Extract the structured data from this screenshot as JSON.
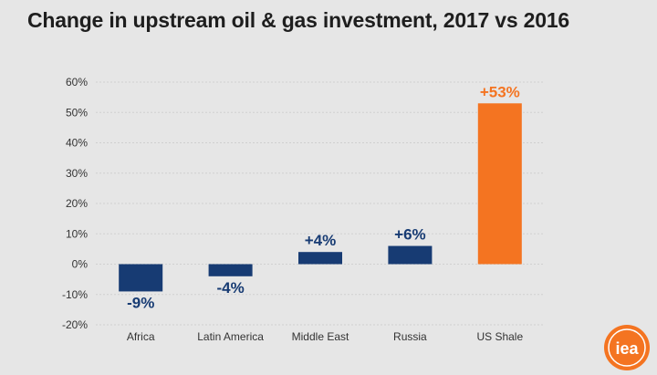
{
  "chart_data": {
    "type": "bar",
    "title": "Change in upstream oil & gas investment, 2017 vs 2016",
    "categories": [
      "Africa",
      "Latin America",
      "Middle East",
      "Russia",
      "US Shale"
    ],
    "values": [
      -9,
      -4,
      4,
      6,
      53
    ],
    "value_labels": [
      "-9%",
      "-4%",
      "+4%",
      "+6%",
      "+53%"
    ],
    "ylim": [
      -20,
      60
    ],
    "yticks": [
      -20,
      -10,
      0,
      10,
      20,
      30,
      40,
      50,
      60
    ],
    "ytick_labels": [
      "-20%",
      "-10%",
      "0%",
      "10%",
      "20%",
      "30%",
      "40%",
      "50%",
      "60%"
    ],
    "xlabel": "",
    "ylabel": "",
    "grid": true,
    "colors": {
      "default": "#173b73",
      "highlight": "#f47421",
      "highlight_category": "US Shale",
      "grid": "#d0d0d0",
      "axis_text": "#333333"
    }
  },
  "logo": {
    "text": "iea",
    "color": "#f47421"
  }
}
